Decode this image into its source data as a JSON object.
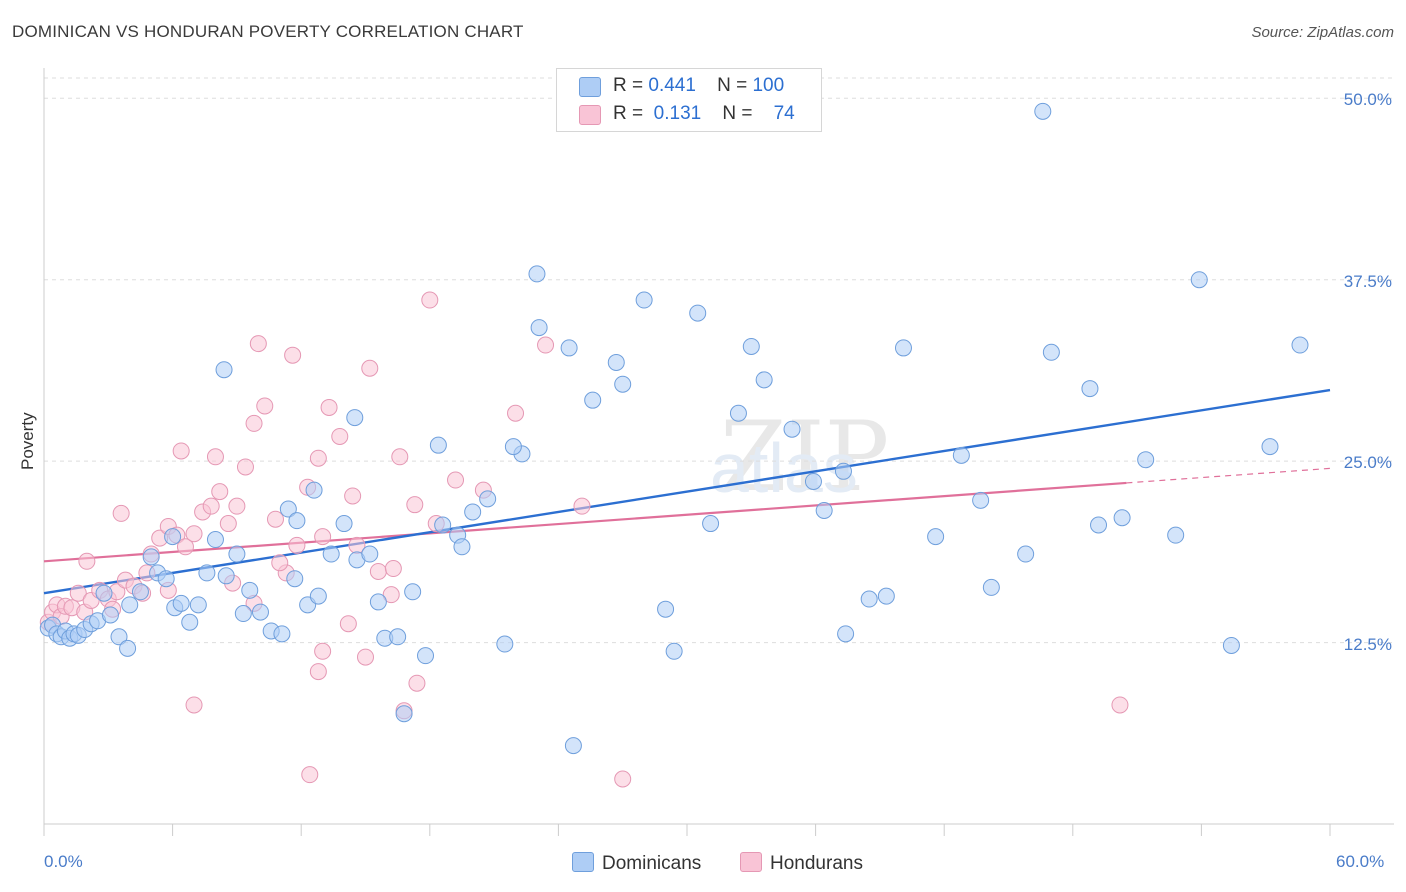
{
  "title": "DOMINICAN VS HONDURAN POVERTY CORRELATION CHART",
  "source": "Source: ZipAtlas.com",
  "watermark": "ZIPatlas",
  "legend": {
    "rows": [
      {
        "r_label": "R =",
        "r_value": "0.441",
        "n_label": "N =",
        "n_value": "100",
        "color": "#aecdf5",
        "border": "#7aa8e0"
      },
      {
        "r_label": "R =",
        "r_value": "0.131",
        "n_label": "N =",
        "n_value": "74",
        "color": "#f9c4d6",
        "border": "#e99ab6"
      }
    ]
  },
  "bottom_legend": {
    "dominicans": "Dominicans",
    "hondurans": "Hondurans"
  },
  "colors": {
    "dominican_fill": "#aecdf5",
    "dominican_stroke": "#6f9fdc",
    "dominican_line": "#2c6fd1",
    "honduran_fill": "#f9c4d6",
    "honduran_stroke": "#e598b4",
    "honduran_line": "#e0709a",
    "tick_label": "#4a7cc9",
    "grid": "#dddddd"
  },
  "chart_data": {
    "type": "scatter",
    "title": "DOMINICAN VS HONDURAN POVERTY CORRELATION CHART",
    "xlabel": "",
    "ylabel": "Poverty",
    "xlim": [
      0,
      60
    ],
    "ylim": [
      0,
      52.5
    ],
    "x_tick_labels": [
      "0.0%",
      "60.0%"
    ],
    "y_ticks": [
      12.5,
      25.0,
      37.5,
      50.0
    ],
    "y_tick_labels": [
      "12.5%",
      "25.0%",
      "37.5%",
      "50.0%"
    ],
    "grid": "horizontal dashed",
    "legend_placement": "top-center",
    "series": [
      {
        "name": "Dominicans",
        "r": 0.441,
        "n": 100,
        "trend": {
          "x": [
            0,
            60
          ],
          "y": [
            15.9,
            29.9
          ]
        },
        "points": [
          [
            0.2,
            13.5
          ],
          [
            0.4,
            13.7
          ],
          [
            0.6,
            13.1
          ],
          [
            0.8,
            12.9
          ],
          [
            1.0,
            13.3
          ],
          [
            1.2,
            12.8
          ],
          [
            1.4,
            13.1
          ],
          [
            1.6,
            13.0
          ],
          [
            1.9,
            13.4
          ],
          [
            2.2,
            13.8
          ],
          [
            2.5,
            14.0
          ],
          [
            2.8,
            15.9
          ],
          [
            3.1,
            14.4
          ],
          [
            3.5,
            12.9
          ],
          [
            4.0,
            15.1
          ],
          [
            4.5,
            16.0
          ],
          [
            5.0,
            18.4
          ],
          [
            5.3,
            17.3
          ],
          [
            5.7,
            16.9
          ],
          [
            6.1,
            14.9
          ],
          [
            6.4,
            15.2
          ],
          [
            6.8,
            13.9
          ],
          [
            7.2,
            15.1
          ],
          [
            7.6,
            17.3
          ],
          [
            8.0,
            19.6
          ],
          [
            8.5,
            17.1
          ],
          [
            9.0,
            18.6
          ],
          [
            9.6,
            16.1
          ],
          [
            10.1,
            14.6
          ],
          [
            10.6,
            13.3
          ],
          [
            11.1,
            13.1
          ],
          [
            11.7,
            16.9
          ],
          [
            12.3,
            15.1
          ],
          [
            12.8,
            15.7
          ],
          [
            13.4,
            18.6
          ],
          [
            14.0,
            20.7
          ],
          [
            14.6,
            18.2
          ],
          [
            15.2,
            18.6
          ],
          [
            15.9,
            12.8
          ],
          [
            16.5,
            12.9
          ],
          [
            17.2,
            16.0
          ],
          [
            17.8,
            11.6
          ],
          [
            18.6,
            20.6
          ],
          [
            19.3,
            19.9
          ],
          [
            20.0,
            21.5
          ],
          [
            20.7,
            22.4
          ],
          [
            21.5,
            12.4
          ],
          [
            22.3,
            25.5
          ],
          [
            23.0,
            37.9
          ],
          [
            24.5,
            32.8
          ],
          [
            25.6,
            29.2
          ],
          [
            27.0,
            30.3
          ],
          [
            28.0,
            36.1
          ],
          [
            30.5,
            35.2
          ],
          [
            32.4,
            28.3
          ],
          [
            33.6,
            30.6
          ],
          [
            34.9,
            27.2
          ],
          [
            35.9,
            23.6
          ],
          [
            37.3,
            24.3
          ],
          [
            38.5,
            15.5
          ],
          [
            40.1,
            32.8
          ],
          [
            41.6,
            19.8
          ],
          [
            42.8,
            25.4
          ],
          [
            44.2,
            16.3
          ],
          [
            45.8,
            18.6
          ],
          [
            47.0,
            32.5
          ],
          [
            48.8,
            30.0
          ],
          [
            50.3,
            21.1
          ],
          [
            51.4,
            25.1
          ],
          [
            53.9,
            37.5
          ],
          [
            55.4,
            12.3
          ],
          [
            58.6,
            33.0
          ],
          [
            3.9,
            12.1
          ],
          [
            8.4,
            31.3
          ],
          [
            11.4,
            21.7
          ],
          [
            12.6,
            23.0
          ],
          [
            16.8,
            7.6
          ],
          [
            14.5,
            28.0
          ],
          [
            19.5,
            19.1
          ],
          [
            21.9,
            26.0
          ],
          [
            24.7,
            5.4
          ],
          [
            26.7,
            31.8
          ],
          [
            29.4,
            11.9
          ],
          [
            31.1,
            20.7
          ],
          [
            33.0,
            32.9
          ],
          [
            36.4,
            21.6
          ],
          [
            39.3,
            15.7
          ],
          [
            43.7,
            22.3
          ],
          [
            46.6,
            49.1
          ],
          [
            49.2,
            20.6
          ],
          [
            52.8,
            19.9
          ],
          [
            57.2,
            26.0
          ],
          [
            37.4,
            13.1
          ],
          [
            29.0,
            14.8
          ],
          [
            23.1,
            34.2
          ],
          [
            18.4,
            26.1
          ],
          [
            15.6,
            15.3
          ],
          [
            11.8,
            20.9
          ],
          [
            9.3,
            14.5
          ],
          [
            6.0,
            19.8
          ]
        ]
      },
      {
        "name": "Hondurans",
        "r": 0.131,
        "n": 74,
        "trend": {
          "x": [
            0,
            50.5
          ],
          "y": [
            18.1,
            23.5
          ]
        },
        "trend_dashed": {
          "x": [
            50.5,
            60
          ],
          "y": [
            23.5,
            24.5
          ]
        },
        "points": [
          [
            0.2,
            13.9
          ],
          [
            0.4,
            14.6
          ],
          [
            0.6,
            15.1
          ],
          [
            0.8,
            14.3
          ],
          [
            1.0,
            15.0
          ],
          [
            1.3,
            14.9
          ],
          [
            1.6,
            15.9
          ],
          [
            1.9,
            14.6
          ],
          [
            2.2,
            15.4
          ],
          [
            2.6,
            16.1
          ],
          [
            3.0,
            15.5
          ],
          [
            3.4,
            16.0
          ],
          [
            3.8,
            16.8
          ],
          [
            4.2,
            16.4
          ],
          [
            4.6,
            15.9
          ],
          [
            5.0,
            18.6
          ],
          [
            5.4,
            19.7
          ],
          [
            5.8,
            20.5
          ],
          [
            6.2,
            19.9
          ],
          [
            6.6,
            19.1
          ],
          [
            7.0,
            20.0
          ],
          [
            7.4,
            21.5
          ],
          [
            7.8,
            21.9
          ],
          [
            8.2,
            22.9
          ],
          [
            8.6,
            20.7
          ],
          [
            9.0,
            21.9
          ],
          [
            9.4,
            24.6
          ],
          [
            9.8,
            27.6
          ],
          [
            10.3,
            28.8
          ],
          [
            10.8,
            21.0
          ],
          [
            11.3,
            17.3
          ],
          [
            11.8,
            19.2
          ],
          [
            12.3,
            23.2
          ],
          [
            12.8,
            25.2
          ],
          [
            13.3,
            28.7
          ],
          [
            13.8,
            26.7
          ],
          [
            14.4,
            22.6
          ],
          [
            15.0,
            11.5
          ],
          [
            15.6,
            17.4
          ],
          [
            16.2,
            15.8
          ],
          [
            16.8,
            7.8
          ],
          [
            17.4,
            9.7
          ],
          [
            18.0,
            36.1
          ],
          [
            19.2,
            23.7
          ],
          [
            20.5,
            23.0
          ],
          [
            22.0,
            28.3
          ],
          [
            23.4,
            33.0
          ],
          [
            25.1,
            21.9
          ],
          [
            27.0,
            3.1
          ],
          [
            50.2,
            8.2
          ],
          [
            3.6,
            21.4
          ],
          [
            4.8,
            17.3
          ],
          [
            6.4,
            25.7
          ],
          [
            8.0,
            25.3
          ],
          [
            10.0,
            33.1
          ],
          [
            11.6,
            32.3
          ],
          [
            13.0,
            11.9
          ],
          [
            14.2,
            13.8
          ],
          [
            15.2,
            31.4
          ],
          [
            16.6,
            25.3
          ],
          [
            17.3,
            22.0
          ],
          [
            18.3,
            20.7
          ],
          [
            12.4,
            3.4
          ],
          [
            7.0,
            8.2
          ],
          [
            2.0,
            18.1
          ],
          [
            3.2,
            14.8
          ],
          [
            5.8,
            16.1
          ],
          [
            8.8,
            16.6
          ],
          [
            9.8,
            15.2
          ],
          [
            11.0,
            18.0
          ],
          [
            12.8,
            10.5
          ],
          [
            14.6,
            19.2
          ],
          [
            16.3,
            17.6
          ],
          [
            13.0,
            19.8
          ]
        ]
      }
    ]
  }
}
